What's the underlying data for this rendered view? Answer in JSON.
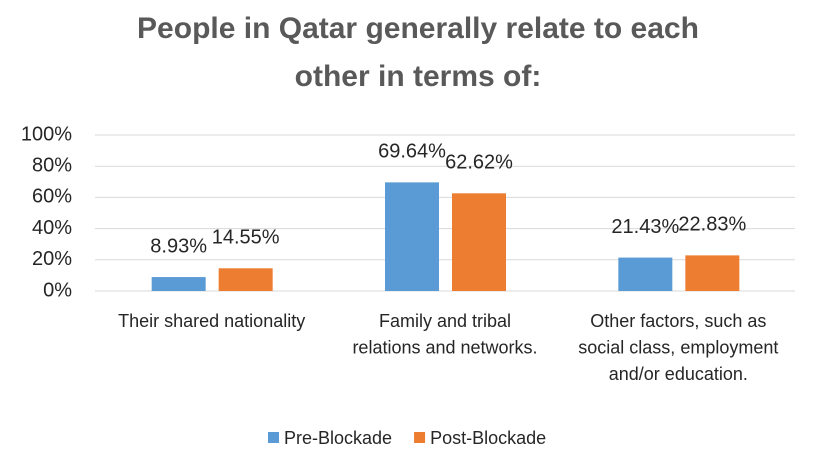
{
  "chart_data": {
    "type": "bar",
    "title": "People in Qatar generally relate to each other in terms of:",
    "categories": [
      "Their shared nationality",
      "Family and tribal relations and networks.",
      "Other factors, such as social class, employment and/or education."
    ],
    "series": [
      {
        "name": "Pre-Blockade",
        "color": "#5B9BD5",
        "values": [
          8.93,
          69.64,
          21.43
        ],
        "value_labels": [
          "8.93%",
          "69.64%",
          "21.43%"
        ]
      },
      {
        "name": "Post-Blockade",
        "color": "#ED7D31",
        "values": [
          14.55,
          62.62,
          22.83
        ],
        "value_labels": [
          "14.55%",
          "62.62%",
          "22.83%"
        ]
      }
    ],
    "ylim": [
      0,
      100
    ],
    "yticks": [
      {
        "value": 0,
        "label": "0%"
      },
      {
        "value": 20,
        "label": "20%"
      },
      {
        "value": 40,
        "label": "40%"
      },
      {
        "value": 60,
        "label": "60%"
      },
      {
        "value": 80,
        "label": "80%"
      },
      {
        "value": 100,
        "label": "100%"
      }
    ],
    "grid": true,
    "legend": "bottom"
  }
}
